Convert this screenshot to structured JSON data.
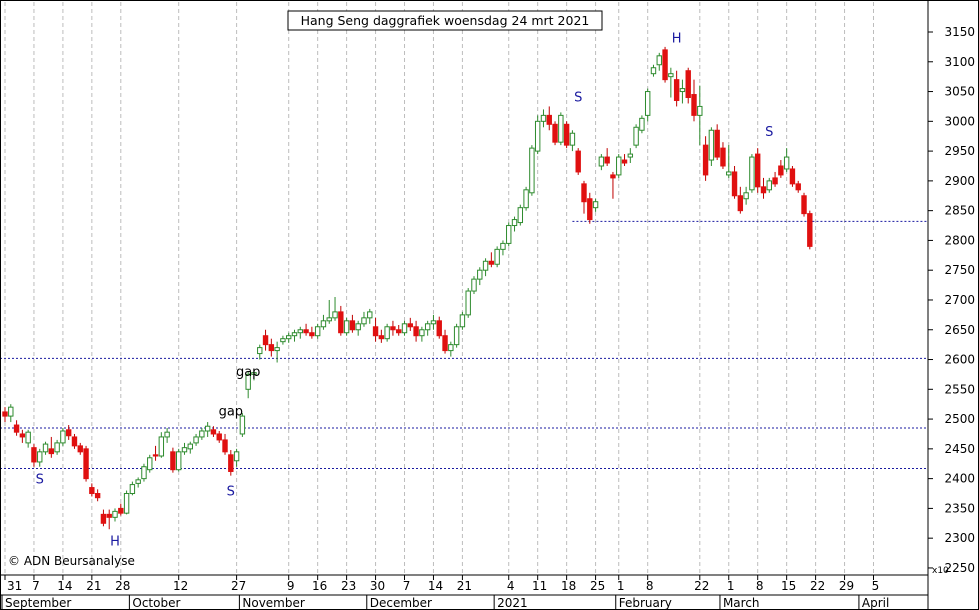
{
  "chart_data": {
    "type": "candlestick",
    "title": "Hang Seng daggrafiek woensdag 24 mrt 2021",
    "credit": "© ADN Beursanalyse",
    "y_unit": "x10",
    "ylim": [
      2250,
      3190
    ],
    "y_ticks": [
      2250,
      2300,
      2350,
      2400,
      2450,
      2500,
      2550,
      2600,
      2650,
      2700,
      2750,
      2800,
      2850,
      2900,
      2950,
      3000,
      3050,
      3100,
      3150
    ],
    "x_ticks": [
      {
        "i": 0,
        "label": "31"
      },
      {
        "i": 5,
        "label": "7"
      },
      {
        "i": 10,
        "label": "14"
      },
      {
        "i": 15,
        "label": "21"
      },
      {
        "i": 20,
        "label": "28"
      },
      {
        "i": 30,
        "label": "12"
      },
      {
        "i": 40,
        "label": "27"
      },
      {
        "i": 49,
        "label": "9"
      },
      {
        "i": 54,
        "label": "16"
      },
      {
        "i": 59,
        "label": "23"
      },
      {
        "i": 64,
        "label": "30"
      },
      {
        "i": 69,
        "label": "7"
      },
      {
        "i": 74,
        "label": "14"
      },
      {
        "i": 79,
        "label": "21"
      },
      {
        "i": 87,
        "label": "4"
      },
      {
        "i": 92,
        "label": "11"
      },
      {
        "i": 97,
        "label": "18"
      },
      {
        "i": 102,
        "label": "25"
      },
      {
        "i": 106,
        "label": "1"
      },
      {
        "i": 111,
        "label": "8"
      },
      {
        "i": 120,
        "label": "22"
      },
      {
        "i": 125,
        "label": "1"
      },
      {
        "i": 130,
        "label": "8"
      },
      {
        "i": 135,
        "label": "15"
      },
      {
        "i": 140,
        "label": "22"
      },
      {
        "i": 145,
        "label": "29"
      },
      {
        "i": 150,
        "label": "5"
      }
    ],
    "months": [
      {
        "i": 0,
        "label": "September"
      },
      {
        "i": 22,
        "label": "October"
      },
      {
        "i": 41,
        "label": "November"
      },
      {
        "i": 63,
        "label": "December"
      },
      {
        "i": 85,
        "label": "2021"
      },
      {
        "i": 106,
        "label": "February"
      },
      {
        "i": 124,
        "label": "March"
      },
      {
        "i": 148,
        "label": "April"
      }
    ],
    "h_lines": [
      2832,
      2602,
      2485,
      2417
    ],
    "annotations": [
      {
        "i": 6,
        "value": 2392,
        "text": "S"
      },
      {
        "i": 19,
        "value": 2288,
        "text": "H"
      },
      {
        "i": 39,
        "value": 2372,
        "text": "S"
      },
      {
        "i": 42,
        "value": 2572,
        "text": "gap"
      },
      {
        "i": 39,
        "value": 2506,
        "text": "gap"
      },
      {
        "i": 99,
        "value": 3033,
        "text": "S"
      },
      {
        "i": 116,
        "value": 3132,
        "text": "H"
      },
      {
        "i": 132,
        "value": 2975,
        "text": "S"
      }
    ],
    "candles": [
      [
        2512,
        2520,
        2495,
        2505
      ],
      [
        2505,
        2525,
        2495,
        2520
      ],
      [
        2490,
        2498,
        2472,
        2478
      ],
      [
        2475,
        2482,
        2460,
        2470
      ],
      [
        2460,
        2482,
        2452,
        2478
      ],
      [
        2452,
        2458,
        2420,
        2428
      ],
      [
        2428,
        2450,
        2420,
        2445
      ],
      [
        2445,
        2462,
        2440,
        2458
      ],
      [
        2450,
        2470,
        2435,
        2442
      ],
      [
        2445,
        2465,
        2440,
        2460
      ],
      [
        2460,
        2485,
        2455,
        2480
      ],
      [
        2482,
        2490,
        2465,
        2472
      ],
      [
        2470,
        2475,
        2450,
        2455
      ],
      [
        2455,
        2460,
        2440,
        2445
      ],
      [
        2450,
        2455,
        2395,
        2400
      ],
      [
        2385,
        2392,
        2370,
        2375
      ],
      [
        2375,
        2382,
        2362,
        2368
      ],
      [
        2340,
        2348,
        2320,
        2325
      ],
      [
        2340,
        2348,
        2315,
        2335
      ],
      [
        2335,
        2350,
        2328,
        2345
      ],
      [
        2350,
        2358,
        2338,
        2342
      ],
      [
        2342,
        2380,
        2340,
        2375
      ],
      [
        2375,
        2395,
        2372,
        2390
      ],
      [
        2392,
        2402,
        2385,
        2398
      ],
      [
        2400,
        2425,
        2395,
        2420
      ],
      [
        2415,
        2440,
        2410,
        2435
      ],
      [
        2440,
        2455,
        2430,
        2438
      ],
      [
        2438,
        2478,
        2435,
        2470
      ],
      [
        2470,
        2485,
        2460,
        2478
      ],
      [
        2445,
        2452,
        2410,
        2415
      ],
      [
        2415,
        2450,
        2412,
        2445
      ],
      [
        2445,
        2460,
        2440,
        2452
      ],
      [
        2450,
        2462,
        2442,
        2458
      ],
      [
        2460,
        2475,
        2455,
        2470
      ],
      [
        2470,
        2485,
        2465,
        2480
      ],
      [
        2480,
        2495,
        2470,
        2488
      ],
      [
        2482,
        2488,
        2470,
        2475
      ],
      [
        2475,
        2480,
        2460,
        2465
      ],
      [
        2465,
        2475,
        2440,
        2445
      ],
      [
        2440,
        2448,
        2405,
        2412
      ],
      [
        2430,
        2450,
        2420,
        2445
      ],
      [
        2475,
        2510,
        2470,
        2505
      ],
      [
        2550,
        2580,
        2535,
        2575
      ],
      [
        2575,
        2582,
        2565,
        2578
      ],
      [
        2610,
        2625,
        2600,
        2620
      ],
      [
        2640,
        2650,
        2615,
        2625
      ],
      [
        2625,
        2635,
        2605,
        2615
      ],
      [
        2615,
        2630,
        2595,
        2620
      ],
      [
        2630,
        2640,
        2625,
        2635
      ],
      [
        2635,
        2645,
        2628,
        2640
      ],
      [
        2640,
        2650,
        2630,
        2645
      ],
      [
        2645,
        2655,
        2635,
        2650
      ],
      [
        2650,
        2660,
        2640,
        2645
      ],
      [
        2645,
        2655,
        2635,
        2640
      ],
      [
        2640,
        2660,
        2635,
        2655
      ],
      [
        2655,
        2675,
        2650,
        2665
      ],
      [
        2665,
        2700,
        2660,
        2670
      ],
      [
        2670,
        2705,
        2665,
        2680
      ],
      [
        2680,
        2690,
        2640,
        2645
      ],
      [
        2645,
        2670,
        2640,
        2665
      ],
      [
        2665,
        2675,
        2645,
        2650
      ],
      [
        2650,
        2665,
        2640,
        2660
      ],
      [
        2660,
        2680,
        2655,
        2670
      ],
      [
        2670,
        2685,
        2660,
        2680
      ],
      [
        2655,
        2670,
        2630,
        2640
      ],
      [
        2640,
        2650,
        2628,
        2635
      ],
      [
        2635,
        2660,
        2630,
        2655
      ],
      [
        2655,
        2665,
        2640,
        2650
      ],
      [
        2650,
        2658,
        2640,
        2645
      ],
      [
        2645,
        2665,
        2640,
        2660
      ],
      [
        2660,
        2670,
        2648,
        2655
      ],
      [
        2655,
        2665,
        2630,
        2640
      ],
      [
        2640,
        2655,
        2630,
        2650
      ],
      [
        2650,
        2665,
        2640,
        2660
      ],
      [
        2660,
        2675,
        2650,
        2665
      ],
      [
        2665,
        2672,
        2635,
        2640
      ],
      [
        2640,
        2650,
        2610,
        2615
      ],
      [
        2615,
        2630,
        2605,
        2625
      ],
      [
        2625,
        2660,
        2620,
        2655
      ],
      [
        2655,
        2680,
        2650,
        2675
      ],
      [
        2675,
        2720,
        2670,
        2715
      ],
      [
        2715,
        2740,
        2710,
        2735
      ],
      [
        2735,
        2755,
        2725,
        2750
      ],
      [
        2750,
        2770,
        2740,
        2765
      ],
      [
        2765,
        2780,
        2755,
        2760
      ],
      [
        2760,
        2790,
        2755,
        2785
      ],
      [
        2785,
        2800,
        2775,
        2795
      ],
      [
        2795,
        2830,
        2790,
        2825
      ],
      [
        2825,
        2840,
        2815,
        2835
      ],
      [
        2830,
        2860,
        2825,
        2855
      ],
      [
        2855,
        2890,
        2850,
        2885
      ],
      [
        2880,
        2960,
        2875,
        2955
      ],
      [
        2950,
        3010,
        2945,
        3000
      ],
      [
        3000,
        3020,
        2990,
        3010
      ],
      [
        3010,
        3025,
        2985,
        2995
      ],
      [
        2995,
        3000,
        2960,
        2965
      ],
      [
        2965,
        3015,
        2960,
        3010
      ],
      [
        2995,
        3000,
        2955,
        2960
      ],
      [
        2960,
        2985,
        2950,
        2980
      ],
      [
        2950,
        2955,
        2910,
        2915
      ],
      [
        2895,
        2900,
        2845,
        2865
      ],
      [
        2870,
        2880,
        2828,
        2835
      ],
      [
        2855,
        2870,
        2848,
        2865
      ],
      [
        2925,
        2945,
        2918,
        2940
      ],
      [
        2940,
        2955,
        2925,
        2930
      ],
      [
        2910,
        2915,
        2870,
        2905
      ],
      [
        2910,
        2945,
        2905,
        2940
      ],
      [
        2935,
        2945,
        2925,
        2930
      ],
      [
        2940,
        2955,
        2930,
        2945
      ],
      [
        2960,
        2995,
        2955,
        2990
      ],
      [
        2985,
        3010,
        2980,
        3005
      ],
      [
        3010,
        3055,
        3000,
        3050
      ],
      [
        3080,
        3095,
        3075,
        3090
      ],
      [
        3095,
        3115,
        3085,
        3110
      ],
      [
        3120,
        3125,
        3065,
        3070
      ],
      [
        3075,
        3090,
        3040,
        3080
      ],
      [
        3070,
        3085,
        3025,
        3035
      ],
      [
        3050,
        3070,
        3030,
        3055
      ],
      [
        3085,
        3090,
        3030,
        3040
      ],
      [
        3045,
        3070,
        3000,
        3010
      ],
      [
        3010,
        3060,
        2960,
        3025
      ],
      [
        2960,
        2975,
        2900,
        2910
      ],
      [
        2935,
        2990,
        2925,
        2985
      ],
      [
        2985,
        2995,
        2935,
        2940
      ],
      [
        2955,
        2965,
        2920,
        2925
      ],
      [
        2910,
        2960,
        2905,
        2915
      ],
      [
        2915,
        2925,
        2870,
        2875
      ],
      [
        2875,
        2890,
        2845,
        2850
      ],
      [
        2870,
        2890,
        2860,
        2880
      ],
      [
        2885,
        2945,
        2880,
        2940
      ],
      [
        2945,
        2955,
        2880,
        2890
      ],
      [
        2890,
        2905,
        2870,
        2880
      ],
      [
        2885,
        2905,
        2880,
        2900
      ],
      [
        2905,
        2915,
        2890,
        2895
      ],
      [
        2925,
        2935,
        2905,
        2910
      ],
      [
        2920,
        2955,
        2915,
        2940
      ],
      [
        2920,
        2925,
        2890,
        2895
      ],
      [
        2895,
        2900,
        2880,
        2885
      ],
      [
        2875,
        2880,
        2840,
        2845
      ],
      [
        2845,
        2850,
        2785,
        2790
      ]
    ]
  }
}
